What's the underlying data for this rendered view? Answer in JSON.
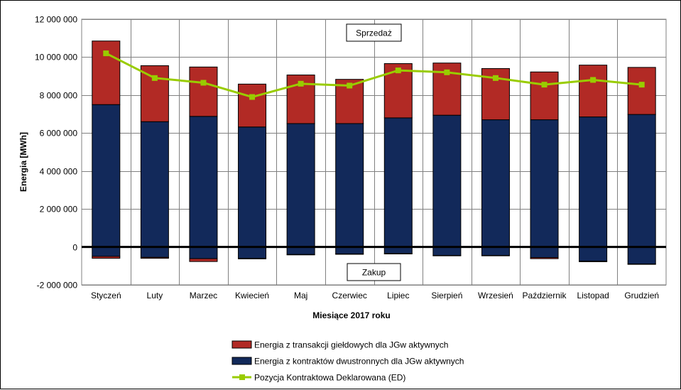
{
  "chart_data": {
    "type": "bar",
    "title": "",
    "xlabel": "Miesiące 2017  roku",
    "ylabel": "Energia  [MWh]",
    "ylim": [
      -2000000,
      12000000
    ],
    "yticks": [
      -2000000,
      0,
      2000000,
      4000000,
      6000000,
      8000000,
      10000000,
      12000000
    ],
    "ytick_labels": [
      "-2 000 000",
      "0",
      "2 000 000",
      "4 000 000",
      "6 000 000",
      "8 000 000",
      "10 000 000",
      "12 000 000"
    ],
    "grid": true,
    "legend_position": "bottom",
    "annotations": {
      "top": "Sprzedaż",
      "bottom": "Zakup"
    },
    "categories": [
      "Styczeń",
      "Luty",
      "Marzec",
      "Kwiecień",
      "Maj",
      "Czerwiec",
      "Lipiec",
      "Sierpień",
      "Wrzesień",
      "Październik",
      "Listopad",
      "Grudzień"
    ],
    "series": [
      {
        "name": "Energia z kontraktów dwustronnych dla JGw aktywnych",
        "kind": "stacked-bar",
        "color": "#12295a",
        "sell": [
          7500000,
          6600000,
          6880000,
          6320000,
          6500000,
          6500000,
          6800000,
          6940000,
          6700000,
          6700000,
          6850000,
          6980000
        ],
        "buy": [
          -500000,
          -550000,
          -620000,
          -600000,
          -400000,
          -370000,
          -350000,
          -450000,
          -450000,
          -560000,
          -750000,
          -900000
        ]
      },
      {
        "name": "Energia z transakcji giełdowych dla JGw aktywnych",
        "kind": "stacked-bar",
        "color": "#b22a25",
        "sell": [
          3350000,
          2950000,
          2600000,
          2260000,
          2560000,
          2330000,
          2860000,
          2750000,
          2700000,
          2520000,
          2730000,
          2480000
        ],
        "buy": [
          -100000,
          -50000,
          -150000,
          -30000,
          -20000,
          -20000,
          -20000,
          -20000,
          -20000,
          -60000,
          -30000,
          -20000
        ]
      },
      {
        "name": "Pozycja Kontraktowa Deklarowana (ED)",
        "kind": "line",
        "color": "#99cc00",
        "values": [
          10200000,
          8900000,
          8650000,
          7900000,
          8600000,
          8500000,
          9300000,
          9200000,
          8900000,
          8550000,
          8800000,
          8550000
        ]
      }
    ]
  }
}
